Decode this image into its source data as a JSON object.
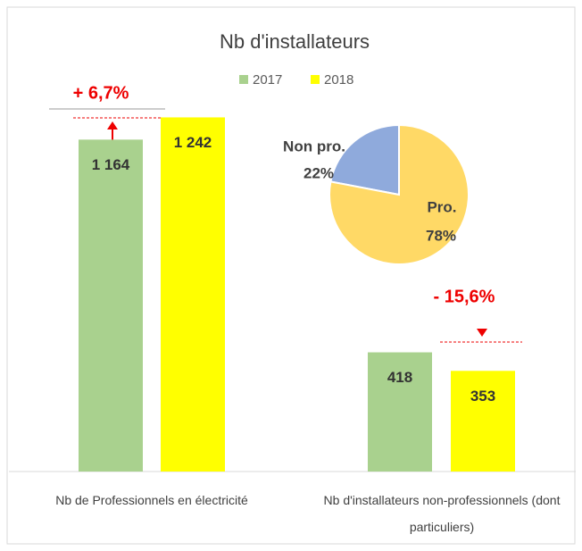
{
  "chart_data": [
    {
      "type": "bar",
      "title": "Nb d'installateurs",
      "categories": [
        "Nb de Professionnels en électricité",
        "Nb d'installateurs non-professionnels (dont particuliers)"
      ],
      "series": [
        {
          "name": "2017",
          "color": "#a9d18e",
          "values": [
            1164,
            418
          ],
          "value_labels": [
            "1 164",
            "418"
          ]
        },
        {
          "name": "2018",
          "color": "#ffff00",
          "values": [
            1242,
            353
          ],
          "value_labels": [
            "1 242",
            "353"
          ]
        }
      ],
      "annotations": [
        "+ 6,7%",
        "- 15,6%"
      ],
      "ylim": [
        0,
        1400
      ]
    },
    {
      "type": "pie",
      "categories": [
        "Non pro.",
        "Pro."
      ],
      "values": [
        22,
        78
      ],
      "value_labels": [
        "22%",
        "78%"
      ],
      "colors": [
        "#8faadc",
        "#ffd966"
      ]
    }
  ]
}
